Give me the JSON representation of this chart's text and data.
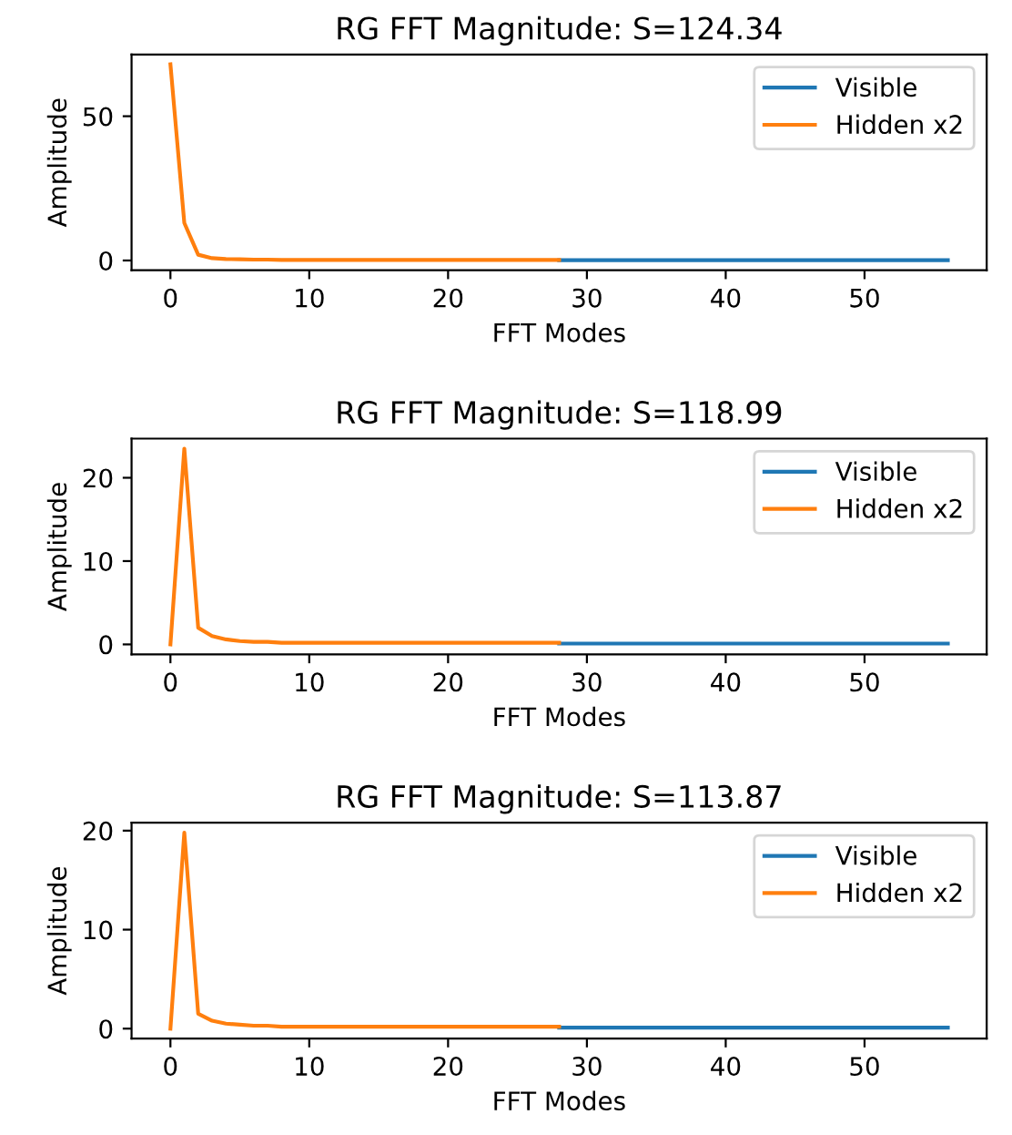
{
  "chart_data": [
    {
      "type": "line",
      "title": "RG FFT Magnitude: S=124.34",
      "xlabel": "FFT Modes",
      "ylabel": "Amplitude",
      "xlim": [
        -2.8,
        58.8
      ],
      "ylim": [
        -3.4,
        71.4
      ],
      "xticks": [
        0,
        10,
        20,
        30,
        40,
        50
      ],
      "yticks": [
        0,
        50
      ],
      "legend": "top right",
      "grid": false,
      "series": [
        {
          "name": "Visible",
          "color": "#1f77b4",
          "x": [
            28,
            29,
            30,
            31,
            32,
            33,
            34,
            35,
            36,
            37,
            38,
            39,
            40,
            41,
            42,
            43,
            44,
            45,
            46,
            47,
            48,
            49,
            50,
            51,
            52,
            53,
            54,
            55,
            56
          ],
          "values": [
            0.1,
            0.1,
            0.1,
            0.1,
            0.1,
            0.1,
            0.1,
            0.1,
            0.1,
            0.1,
            0.1,
            0.1,
            0.1,
            0.1,
            0.1,
            0.1,
            0.1,
            0.1,
            0.1,
            0.1,
            0.1,
            0.1,
            0.1,
            0.1,
            0.1,
            0.1,
            0.1,
            0.1,
            0.1
          ]
        },
        {
          "name": "Hidden x2",
          "color": "#ff7f0e",
          "x": [
            0,
            1,
            2,
            3,
            4,
            5,
            6,
            7,
            8,
            9,
            10,
            11,
            12,
            13,
            14,
            15,
            16,
            17,
            18,
            19,
            20,
            21,
            22,
            23,
            24,
            25,
            26,
            27,
            28
          ],
          "values": [
            68,
            13,
            2,
            0.8,
            0.5,
            0.4,
            0.3,
            0.3,
            0.2,
            0.2,
            0.2,
            0.2,
            0.2,
            0.2,
            0.2,
            0.2,
            0.2,
            0.2,
            0.2,
            0.2,
            0.2,
            0.2,
            0.2,
            0.2,
            0.2,
            0.2,
            0.2,
            0.2,
            0.2
          ]
        }
      ]
    },
    {
      "type": "line",
      "title": "RG FFT Magnitude: S=118.99",
      "xlabel": "FFT Modes",
      "ylabel": "Amplitude",
      "xlim": [
        -2.8,
        58.8
      ],
      "ylim": [
        -1.2,
        24.7
      ],
      "xticks": [
        0,
        10,
        20,
        30,
        40,
        50
      ],
      "yticks": [
        0,
        10,
        20
      ],
      "legend": "top right",
      "grid": false,
      "series": [
        {
          "name": "Visible",
          "color": "#1f77b4",
          "x": [
            28,
            29,
            30,
            31,
            32,
            33,
            34,
            35,
            36,
            37,
            38,
            39,
            40,
            41,
            42,
            43,
            44,
            45,
            46,
            47,
            48,
            49,
            50,
            51,
            52,
            53,
            54,
            55,
            56
          ],
          "values": [
            0.1,
            0.1,
            0.1,
            0.1,
            0.1,
            0.1,
            0.1,
            0.1,
            0.1,
            0.1,
            0.1,
            0.1,
            0.1,
            0.1,
            0.1,
            0.1,
            0.1,
            0.1,
            0.1,
            0.1,
            0.1,
            0.1,
            0.1,
            0.1,
            0.1,
            0.1,
            0.1,
            0.1,
            0.1
          ]
        },
        {
          "name": "Hidden x2",
          "color": "#ff7f0e",
          "x": [
            0,
            1,
            2,
            3,
            4,
            5,
            6,
            7,
            8,
            9,
            10,
            11,
            12,
            13,
            14,
            15,
            16,
            17,
            18,
            19,
            20,
            21,
            22,
            23,
            24,
            25,
            26,
            27,
            28
          ],
          "values": [
            0,
            23.5,
            2,
            1,
            0.6,
            0.4,
            0.3,
            0.3,
            0.2,
            0.2,
            0.2,
            0.2,
            0.2,
            0.2,
            0.2,
            0.2,
            0.2,
            0.2,
            0.2,
            0.2,
            0.2,
            0.2,
            0.2,
            0.2,
            0.2,
            0.2,
            0.2,
            0.2,
            0.2
          ]
        }
      ]
    },
    {
      "type": "line",
      "title": "RG FFT Magnitude: S=113.87",
      "xlabel": "FFT Modes",
      "ylabel": "Amplitude",
      "xlim": [
        -2.8,
        58.8
      ],
      "ylim": [
        -1.0,
        20.8
      ],
      "xticks": [
        0,
        10,
        20,
        30,
        40,
        50
      ],
      "yticks": [
        0,
        10,
        20
      ],
      "legend": "top right",
      "grid": false,
      "series": [
        {
          "name": "Visible",
          "color": "#1f77b4",
          "x": [
            28,
            29,
            30,
            31,
            32,
            33,
            34,
            35,
            36,
            37,
            38,
            39,
            40,
            41,
            42,
            43,
            44,
            45,
            46,
            47,
            48,
            49,
            50,
            51,
            52,
            53,
            54,
            55,
            56
          ],
          "values": [
            0.1,
            0.1,
            0.1,
            0.1,
            0.1,
            0.1,
            0.1,
            0.1,
            0.1,
            0.1,
            0.1,
            0.1,
            0.1,
            0.1,
            0.1,
            0.1,
            0.1,
            0.1,
            0.1,
            0.1,
            0.1,
            0.1,
            0.1,
            0.1,
            0.1,
            0.1,
            0.1,
            0.1,
            0.1
          ]
        },
        {
          "name": "Hidden x2",
          "color": "#ff7f0e",
          "x": [
            0,
            1,
            2,
            3,
            4,
            5,
            6,
            7,
            8,
            9,
            10,
            11,
            12,
            13,
            14,
            15,
            16,
            17,
            18,
            19,
            20,
            21,
            22,
            23,
            24,
            25,
            26,
            27,
            28
          ],
          "values": [
            0,
            19.8,
            1.5,
            0.8,
            0.5,
            0.4,
            0.3,
            0.3,
            0.2,
            0.2,
            0.2,
            0.2,
            0.2,
            0.2,
            0.2,
            0.2,
            0.2,
            0.2,
            0.2,
            0.2,
            0.2,
            0.2,
            0.2,
            0.2,
            0.2,
            0.2,
            0.2,
            0.2,
            0.2
          ]
        }
      ]
    }
  ]
}
